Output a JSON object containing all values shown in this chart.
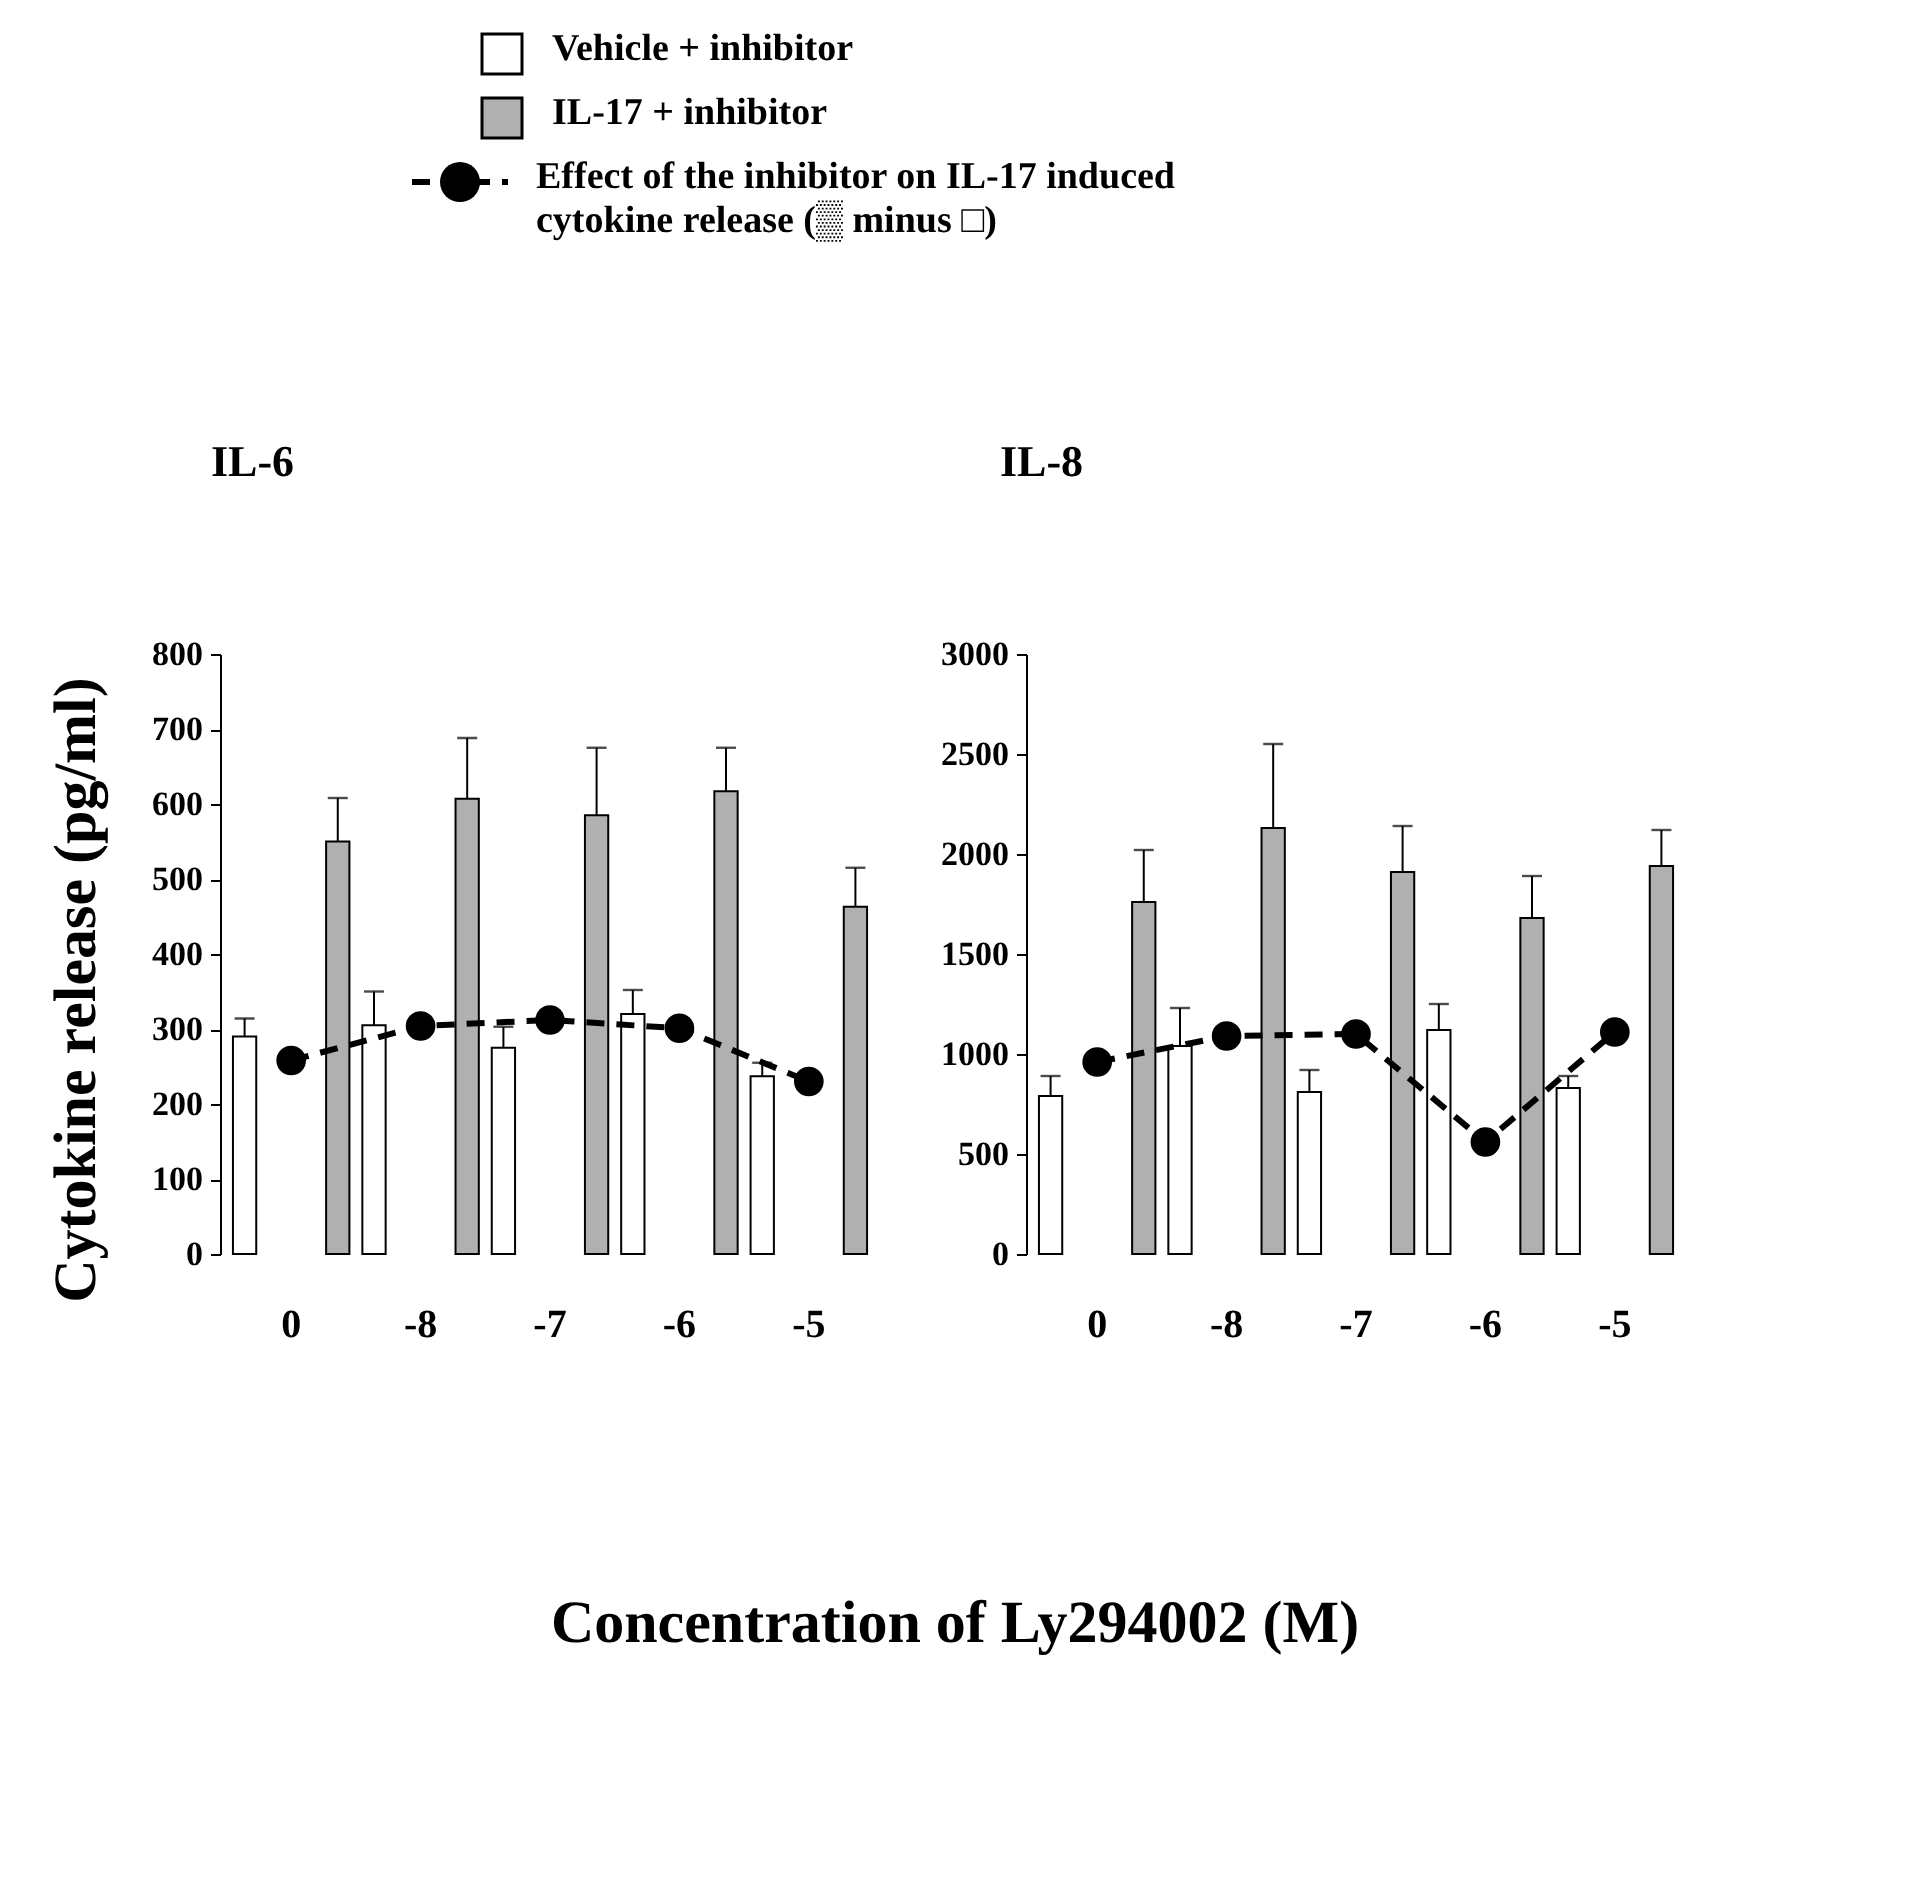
{
  "chart_data": [
    {
      "type": "bar",
      "title": "IL-6",
      "ylabel": "Cytokine release (pg/ml)",
      "xlabel": "Concentration of Ly294002 (M)",
      "legend": "top",
      "categories": [
        "0",
        "-8",
        "-7",
        "-6",
        "-5"
      ],
      "ylim": [
        0,
        800
      ],
      "yticks": [
        0,
        100,
        200,
        300,
        400,
        500,
        600,
        700,
        800
      ],
      "series": [
        {
          "name": "Vehicle + inhibitor",
          "color": "#ffffff",
          "values": [
            290,
            305,
            275,
            320,
            237
          ],
          "errors": [
            [
              290,
              314
            ],
            [
              305,
              350
            ],
            [
              275,
              303
            ],
            [
              320,
              352
            ],
            [
              237,
              255
            ]
          ]
        },
        {
          "name": "IL-17 + inhibitor",
          "color": "#b0b0b0",
          "values": [
            550,
            607,
            585,
            617,
            463
          ],
          "errors": [
            [
              550,
              608
            ],
            [
              607,
              688
            ],
            [
              585,
              675
            ],
            [
              617,
              675
            ],
            [
              463,
              515
            ]
          ]
        },
        {
          "name": "Effect of the inhibitor on IL-17 induced cytokine release (▒ minus □)",
          "type": "line",
          "color": "#000000",
          "marker": "circle",
          "line_style": "dashed",
          "values": [
            258,
            304,
            312,
            301,
            230
          ]
        }
      ]
    },
    {
      "type": "bar",
      "title": "IL-8",
      "categories": [
        "0",
        "-8",
        "-7",
        "-6",
        "-5"
      ],
      "ylim": [
        0,
        3000
      ],
      "yticks": [
        0,
        500,
        1000,
        1500,
        2000,
        2500,
        3000
      ],
      "series": [
        {
          "color": "#ffffff",
          "values": [
            790,
            1040,
            810,
            1120,
            830
          ],
          "errors": [
            [
              790,
              890
            ],
            [
              1040,
              1230
            ],
            [
              810,
              920
            ],
            [
              1120,
              1250
            ],
            [
              830,
              890
            ]
          ]
        },
        {
          "color": "#b0b0b0",
          "values": [
            1760,
            2130,
            1910,
            1680,
            1940
          ],
          "errors": [
            [
              1760,
              2020
            ],
            [
              2130,
              2550
            ],
            [
              1910,
              2140
            ],
            [
              1680,
              1890
            ],
            [
              1940,
              2120
            ]
          ]
        },
        {
          "type": "line",
          "color": "#000000",
          "marker": "circle",
          "line_style": "dashed",
          "values": [
            960,
            1090,
            1100,
            560,
            1110
          ]
        }
      ]
    }
  ]
}
